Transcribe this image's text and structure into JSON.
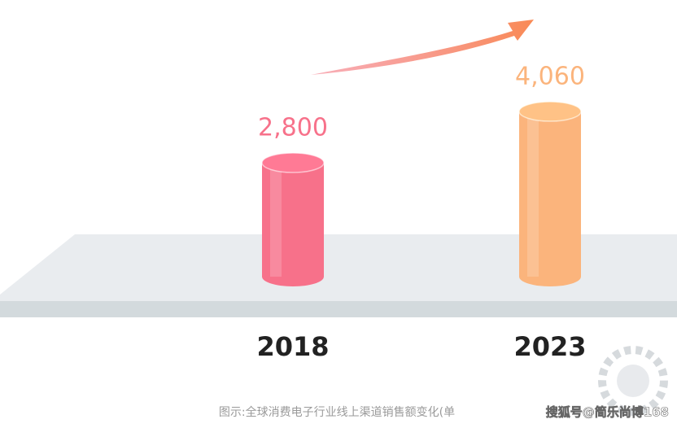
{
  "chart_data": {
    "type": "bar",
    "categories": [
      "2018",
      "2023"
    ],
    "values": [
      2800,
      4060
    ],
    "value_labels": [
      "2,800",
      "4,060"
    ],
    "colors": [
      "#f7718a",
      "#fbb47c"
    ],
    "caption": "图示:全球消费电子行业线上渠道销售额变化(单",
    "watermark": "搜狐号@简乐尚博168"
  }
}
